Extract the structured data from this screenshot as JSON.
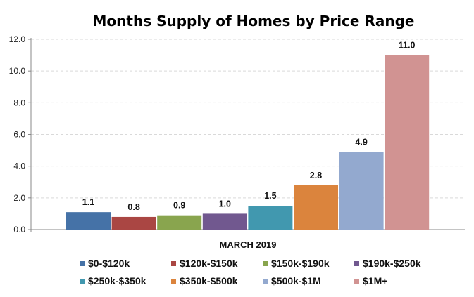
{
  "chart_data": {
    "type": "bar",
    "title": "Months Supply of Homes by Price Range",
    "xlabel": "MARCH 2019",
    "ylabel": "",
    "ylim": [
      0,
      12
    ],
    "yticks": [
      "0.0",
      "2.0",
      "4.0",
      "6.0",
      "8.0",
      "10.0",
      "12.0"
    ],
    "grid": true,
    "legend_position": "bottom",
    "series": [
      {
        "name": "$0-$120k",
        "value": 1.1,
        "label": "1.1",
        "color": "#4572A7"
      },
      {
        "name": "$120k-$150k",
        "value": 0.8,
        "label": "0.8",
        "color": "#AA4643"
      },
      {
        "name": "$150k-$190k",
        "value": 0.9,
        "label": "0.9",
        "color": "#89A54E"
      },
      {
        "name": "$190k-$250k",
        "value": 1.0,
        "label": "1.0",
        "color": "#71588F"
      },
      {
        "name": "$250k-$350k",
        "value": 1.5,
        "label": "1.5",
        "color": "#4198AF"
      },
      {
        "name": "$350k-$500k",
        "value": 2.8,
        "label": "2.8",
        "color": "#DB843D"
      },
      {
        "name": "$500k-$1M",
        "value": 4.9,
        "label": "4.9",
        "color": "#93A9CF"
      },
      {
        "name": "$1M+",
        "value": 11.0,
        "label": "11.0",
        "color": "#D19392"
      }
    ]
  }
}
